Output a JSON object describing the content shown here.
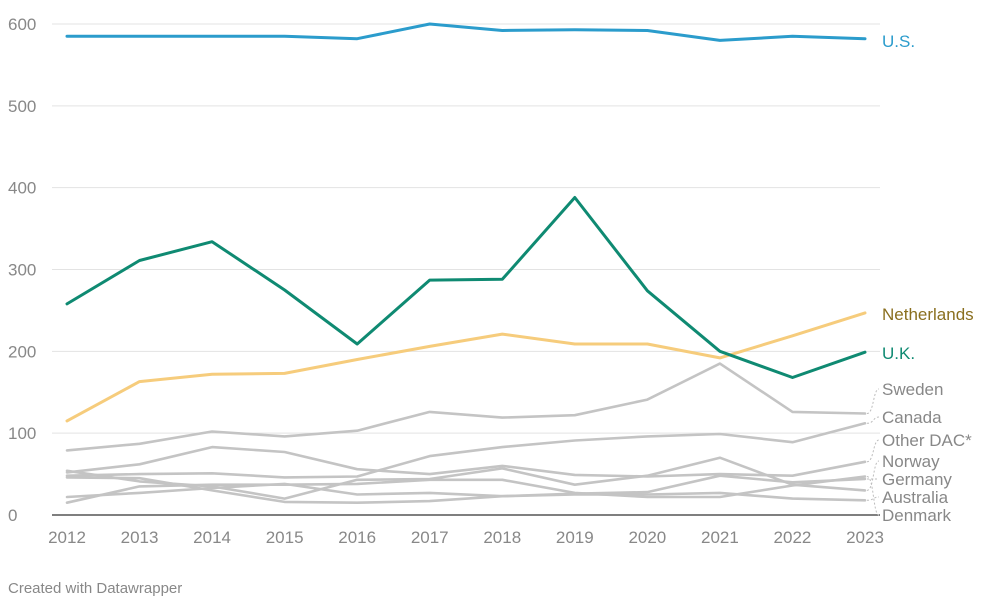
{
  "chart_data": {
    "type": "line",
    "title": "",
    "xlabel": "",
    "ylabel": "",
    "ylim": [
      0,
      600
    ],
    "yticks": [
      0,
      100,
      200,
      300,
      400,
      500,
      600
    ],
    "x": [
      2012,
      2013,
      2014,
      2015,
      2016,
      2017,
      2018,
      2019,
      2020,
      2021,
      2022,
      2023
    ],
    "grid": true,
    "legend": "direct labels at line ends (right)",
    "series": [
      {
        "name": "Denmark",
        "color": "#c4c4c4",
        "values": [
          15,
          35,
          37,
          37,
          38,
          43,
          43,
          27,
          22,
          22,
          36,
          47
        ]
      },
      {
        "name": "Australia",
        "color": "#c4c4c4",
        "values": [
          22,
          27,
          33,
          38,
          25,
          27,
          23,
          25,
          25,
          27,
          20,
          18
        ]
      },
      {
        "name": "Germany",
        "color": "#c4c4c4",
        "values": [
          46,
          45,
          30,
          16,
          15,
          17,
          23,
          26,
          28,
          48,
          40,
          44
        ]
      },
      {
        "name": "Norway",
        "color": "#c4c4c4",
        "values": [
          54,
          41,
          35,
          20,
          43,
          44,
          57,
          37,
          48,
          70,
          37,
          30
        ]
      },
      {
        "name": "Other DAC*",
        "color": "#c4c4c4",
        "values": [
          52,
          62,
          83,
          77,
          56,
          50,
          60,
          49,
          47,
          50,
          48,
          65
        ]
      },
      {
        "name": "Canada",
        "color": "#c4c4c4",
        "values": [
          48,
          50,
          51,
          46,
          47,
          72,
          83,
          91,
          96,
          99,
          89,
          112
        ]
      },
      {
        "name": "Sweden",
        "color": "#c4c4c4",
        "values": [
          79,
          87,
          102,
          96,
          103,
          126,
          119,
          122,
          141,
          185,
          126,
          124
        ]
      },
      {
        "name": "Netherlands",
        "color": "#f6cc7c",
        "labelColor": "#8a6f1f",
        "values": [
          115,
          163,
          172,
          173,
          190,
          206,
          221,
          209,
          209,
          192,
          219,
          247
        ]
      },
      {
        "name": "U.K.",
        "color": "#0f8a72",
        "values": [
          258,
          311,
          334,
          275,
          209,
          287,
          288,
          388,
          274,
          200,
          168,
          199
        ]
      },
      {
        "name": "U.S.",
        "color": "#2b9ccc",
        "values": [
          585,
          585,
          585,
          585,
          582,
          600,
          592,
          593,
          592,
          580,
          585,
          582
        ]
      }
    ],
    "labels": [
      {
        "name": "U.S.",
        "color": "#2b9ccc"
      },
      {
        "name": "Netherlands",
        "color": "#8a6f1f"
      },
      {
        "name": "U.K.",
        "color": "#0f8a72"
      },
      {
        "name": "Sweden",
        "color": "#888888"
      },
      {
        "name": "Canada",
        "color": "#888888"
      },
      {
        "name": "Other DAC*",
        "color": "#888888"
      },
      {
        "name": "Norway",
        "color": "#888888"
      },
      {
        "name": "Germany",
        "color": "#888888"
      },
      {
        "name": "Australia",
        "color": "#888888"
      },
      {
        "name": "Denmark",
        "color": "#888888"
      }
    ]
  },
  "footer": "Created with Datawrapper"
}
